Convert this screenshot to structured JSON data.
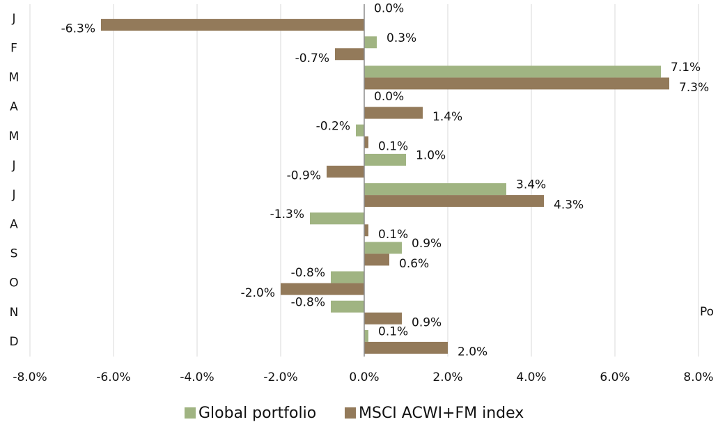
{
  "chart_data": {
    "type": "bar",
    "orientation": "horizontal",
    "categories": [
      "J",
      "F",
      "M",
      "A",
      "M",
      "J",
      "J",
      "A",
      "S",
      "O",
      "N",
      "D"
    ],
    "series": [
      {
        "name": "Global portfolio",
        "color": "#a0b482",
        "values": [
          0.0,
          0.3,
          7.1,
          0.0,
          -0.2,
          1.0,
          3.4,
          -1.3,
          0.9,
          -0.8,
          -0.8,
          0.1
        ],
        "value_labels": [
          "0.0%",
          "0.3%",
          "7.1%",
          "0.0%",
          "-0.2%",
          "1.0%",
          "3.4%",
          "-1.3%",
          "0.9%",
          "-0.8%",
          "-0.8%",
          "0.1%"
        ]
      },
      {
        "name": "MSCI ACWI+FM index",
        "color": "#937a5a",
        "values": [
          -6.3,
          -0.7,
          7.3,
          1.4,
          0.1,
          -0.9,
          4.3,
          0.1,
          0.6,
          -2.0,
          0.9,
          2.0
        ],
        "value_labels": [
          "-6.3%",
          "-0.7%",
          "7.3%",
          "1.4%",
          "0.1%",
          "-0.9%",
          "4.3%",
          "0.1%",
          "0.6%",
          "-2.0%",
          "0.9%",
          "2.0%"
        ]
      }
    ],
    "xlim": [
      -8,
      8
    ],
    "xticks": [
      {
        "value": -8,
        "label": "-8.0%"
      },
      {
        "value": -6,
        "label": "-6.0%"
      },
      {
        "value": -4,
        "label": "-4.0%"
      },
      {
        "value": -2,
        "label": "-2.0%"
      },
      {
        "value": 0,
        "label": "0.0%"
      },
      {
        "value": 2,
        "label": "2.0%"
      },
      {
        "value": 4,
        "label": "4.0%"
      },
      {
        "value": 6,
        "label": "6.0%"
      },
      {
        "value": 8,
        "label": "8.0%"
      }
    ],
    "grid": true,
    "annotation": "Po",
    "legend": "bottom"
  }
}
